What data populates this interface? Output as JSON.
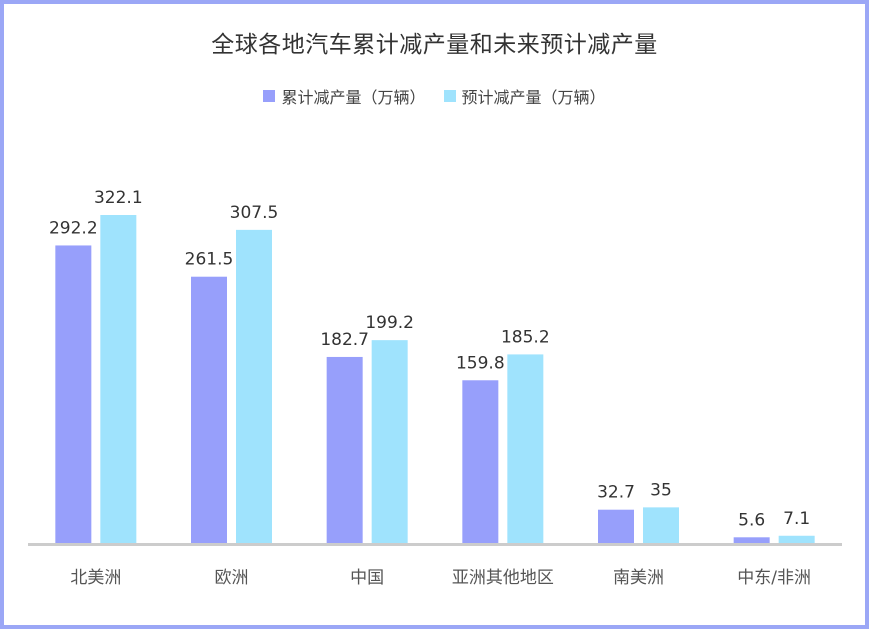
{
  "chart_data": {
    "type": "bar",
    "title": "全球各地汽车累计减产量和未来预计减产量",
    "categories": [
      "北美洲",
      "欧洲",
      "中国",
      "亚洲其他地区",
      "南美洲",
      "中东/非洲"
    ],
    "series": [
      {
        "name": "累计减产量（万辆）",
        "values": [
          292.2,
          261.5,
          182.7,
          159.8,
          32.7,
          5.6
        ],
        "labels": [
          "292.2",
          "261.5",
          "182.7",
          "159.8",
          "32.7",
          "5.6"
        ],
        "color": "#979ffb"
      },
      {
        "name": "预计减产量（万辆）",
        "values": [
          322.1,
          307.5,
          199.2,
          185.2,
          35,
          7.1
        ],
        "labels": [
          "322.1",
          "307.5",
          "199.2",
          "185.2",
          "35",
          "7.1"
        ],
        "color": "#9fe3fd"
      }
    ],
    "ylim": [
      0,
      350
    ],
    "grid": false,
    "legend_position": "top",
    "frame_color": "#9ba7f6",
    "axis_color": "#cccccc"
  }
}
